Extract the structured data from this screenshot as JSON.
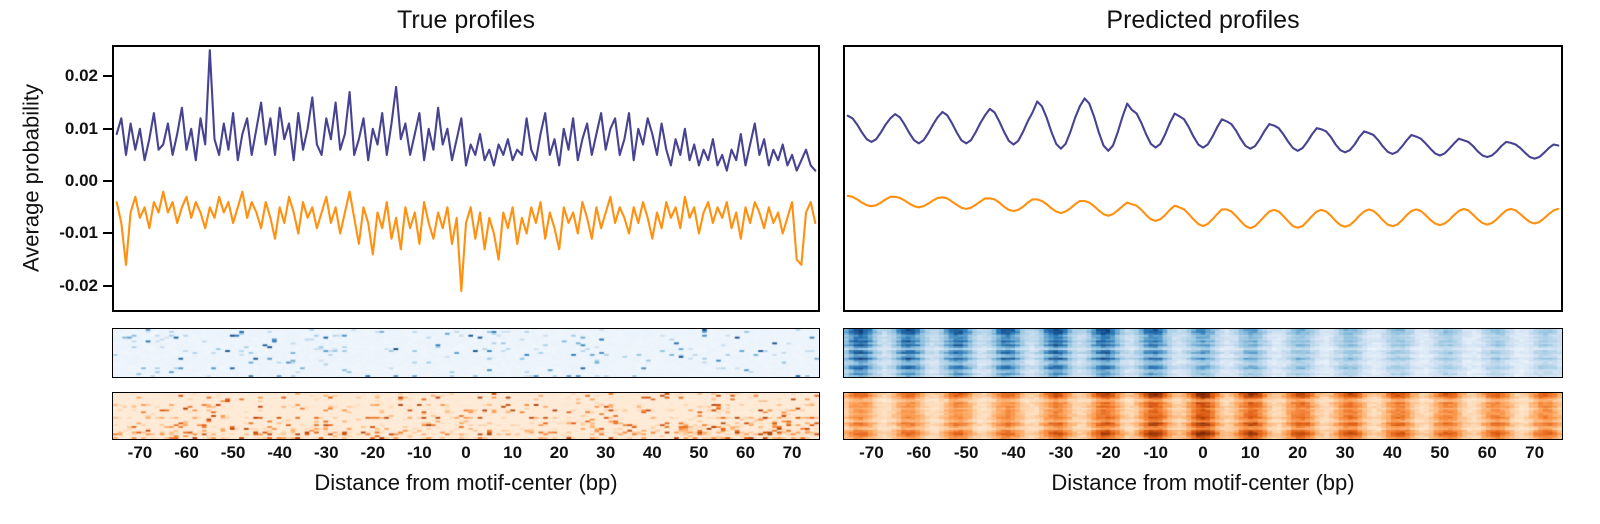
{
  "figure": {
    "background": "#ffffff",
    "axis_color": "#000000"
  },
  "colormaps": {
    "blues": [
      [
        0,
        "#f7fbff"
      ],
      [
        0.25,
        "#d0e1f2"
      ],
      [
        0.5,
        "#94c4df"
      ],
      [
        0.75,
        "#2b7bba"
      ],
      [
        1,
        "#08306b"
      ]
    ],
    "oranges": [
      [
        0,
        "#fff5eb"
      ],
      [
        0.25,
        "#fdd9b4"
      ],
      [
        0.5,
        "#fd9e53"
      ],
      [
        0.75,
        "#e05c10"
      ],
      [
        1,
        "#7f2704"
      ]
    ]
  },
  "chart_data": [
    {
      "id": "true",
      "type": "line",
      "title": "True profiles",
      "xlabel": "Distance from motif-center (bp)",
      "ylabel": "Average probability",
      "xlim": [
        -76,
        76
      ],
      "ylim": [
        -0.025,
        0.026
      ],
      "xticks": [
        -70,
        -60,
        -50,
        -40,
        -30,
        -20,
        -10,
        0,
        10,
        20,
        30,
        40,
        50,
        60,
        70
      ],
      "yticks": [
        0.02,
        0.01,
        0.0,
        -0.01,
        -0.02
      ],
      "ytick_labels": [
        "0.02",
        "0.01",
        "0.00",
        "-0.01",
        "-0.02"
      ],
      "x_range": [
        -75,
        75,
        1
      ],
      "series": [
        {
          "name": "positive-strand-profile",
          "color": "#474291",
          "y": [
            0.009,
            0.012,
            0.005,
            0.011,
            0.006,
            0.01,
            0.004,
            0.008,
            0.013,
            0.006,
            0.007,
            0.011,
            0.005,
            0.009,
            0.014,
            0.006,
            0.01,
            0.004,
            0.012,
            0.007,
            0.025,
            0.008,
            0.005,
            0.011,
            0.006,
            0.013,
            0.004,
            0.009,
            0.012,
            0.005,
            0.01,
            0.015,
            0.007,
            0.012,
            0.005,
            0.014,
            0.008,
            0.011,
            0.004,
            0.013,
            0.006,
            0.01,
            0.016,
            0.007,
            0.005,
            0.012,
            0.008,
            0.015,
            0.006,
            0.009,
            0.017,
            0.005,
            0.008,
            0.012,
            0.004,
            0.01,
            0.007,
            0.013,
            0.005,
            0.011,
            0.018,
            0.008,
            0.011,
            0.005,
            0.009,
            0.013,
            0.004,
            0.01,
            0.006,
            0.014,
            0.007,
            0.01,
            0.004,
            0.008,
            0.012,
            0.003,
            0.007,
            0.005,
            0.009,
            0.004,
            0.006,
            0.003,
            0.007,
            0.005,
            0.008,
            0.004,
            0.006,
            0.005,
            0.012,
            0.006,
            0.004,
            0.009,
            0.013,
            0.005,
            0.008,
            0.003,
            0.01,
            0.006,
            0.012,
            0.004,
            0.008,
            0.011,
            0.005,
            0.009,
            0.013,
            0.006,
            0.01,
            0.012,
            0.005,
            0.008,
            0.013,
            0.004,
            0.01,
            0.007,
            0.012,
            0.009,
            0.005,
            0.011,
            0.006,
            0.003,
            0.008,
            0.005,
            0.01,
            0.004,
            0.007,
            0.003,
            0.006,
            0.004,
            0.008,
            0.003,
            0.005,
            0.002,
            0.006,
            0.004,
            0.009,
            0.003,
            0.007,
            0.011,
            0.005,
            0.008,
            0.003,
            0.006,
            0.004,
            0.007,
            0.003,
            0.005,
            0.002,
            0.004,
            0.006,
            0.003,
            0.002
          ]
        },
        {
          "name": "negative-strand-profile",
          "color": "#ff9010",
          "y": [
            -0.004,
            -0.008,
            -0.016,
            -0.006,
            -0.003,
            -0.007,
            -0.005,
            -0.009,
            -0.004,
            -0.006,
            -0.002,
            -0.006,
            -0.004,
            -0.008,
            -0.005,
            -0.003,
            -0.007,
            -0.004,
            -0.006,
            -0.009,
            -0.005,
            -0.007,
            -0.003,
            -0.006,
            -0.004,
            -0.008,
            -0.005,
            -0.002,
            -0.007,
            -0.004,
            -0.006,
            -0.009,
            -0.004,
            -0.007,
            -0.011,
            -0.005,
            -0.008,
            -0.003,
            -0.006,
            -0.01,
            -0.004,
            -0.007,
            -0.005,
            -0.009,
            -0.006,
            -0.003,
            -0.008,
            -0.005,
            -0.01,
            -0.006,
            -0.002,
            -0.007,
            -0.012,
            -0.005,
            -0.008,
            -0.014,
            -0.006,
            -0.009,
            -0.004,
            -0.011,
            -0.007,
            -0.013,
            -0.005,
            -0.009,
            -0.006,
            -0.012,
            -0.004,
            -0.008,
            -0.011,
            -0.006,
            -0.009,
            -0.005,
            -0.012,
            -0.007,
            -0.021,
            -0.008,
            -0.005,
            -0.011,
            -0.006,
            -0.013,
            -0.007,
            -0.01,
            -0.015,
            -0.006,
            -0.009,
            -0.005,
            -0.012,
            -0.007,
            -0.01,
            -0.005,
            -0.008,
            -0.004,
            -0.011,
            -0.006,
            -0.009,
            -0.013,
            -0.005,
            -0.008,
            -0.006,
            -0.01,
            -0.004,
            -0.007,
            -0.011,
            -0.005,
            -0.009,
            -0.006,
            -0.003,
            -0.008,
            -0.005,
            -0.007,
            -0.01,
            -0.005,
            -0.008,
            -0.004,
            -0.007,
            -0.011,
            -0.006,
            -0.009,
            -0.004,
            -0.007,
            -0.005,
            -0.009,
            -0.003,
            -0.007,
            -0.005,
            -0.01,
            -0.006,
            -0.004,
            -0.008,
            -0.005,
            -0.007,
            -0.004,
            -0.009,
            -0.006,
            -0.011,
            -0.005,
            -0.008,
            -0.004,
            -0.006,
            -0.009,
            -0.005,
            -0.008,
            -0.006,
            -0.01,
            -0.007,
            -0.004,
            -0.015,
            -0.016,
            -0.006,
            -0.004,
            -0.008
          ]
        }
      ],
      "heatmaps": [
        {
          "name": "true-positive-heatmap",
          "colormap": "blues",
          "style": "sparse",
          "rows": 25,
          "seed": 11,
          "density": 0.05,
          "bg": 0.05,
          "value_lo": 0.25,
          "value_hi": 0.95
        },
        {
          "name": "true-negative-heatmap",
          "colormap": "oranges",
          "style": "sparse",
          "rows": 25,
          "seed": 29,
          "density": 0.17,
          "bg": 0.08,
          "value_lo": 0.2,
          "value_hi": 0.9,
          "right_boost": 1.8
        }
      ]
    },
    {
      "id": "predicted",
      "type": "line",
      "title": "Predicted profiles",
      "xlabel": "Distance from motif-center (bp)",
      "xlim": [
        -76,
        76
      ],
      "ylim": [
        -0.025,
        0.026
      ],
      "xticks": [
        -70,
        -60,
        -50,
        -40,
        -30,
        -20,
        -10,
        0,
        10,
        20,
        30,
        40,
        50,
        60,
        70
      ],
      "yticks": [],
      "ytick_labels": [],
      "x_range": [
        -75,
        75,
        1
      ],
      "series": [
        {
          "name": "positive-strand-profile",
          "color": "#474291",
          "y": [
            0.0125,
            0.012,
            0.0108,
            0.0093,
            0.008,
            0.0075,
            0.008,
            0.0093,
            0.0108,
            0.012,
            0.0128,
            0.0122,
            0.0108,
            0.0092,
            0.0078,
            0.0072,
            0.0078,
            0.0092,
            0.0108,
            0.0122,
            0.0132,
            0.0126,
            0.0111,
            0.0093,
            0.0078,
            0.0072,
            0.0078,
            0.0093,
            0.0111,
            0.0126,
            0.0138,
            0.0131,
            0.0114,
            0.0094,
            0.0077,
            0.007,
            0.0077,
            0.0094,
            0.0114,
            0.0131,
            0.0152,
            0.0143,
            0.0121,
            0.0094,
            0.0071,
            0.0062,
            0.0071,
            0.0094,
            0.0121,
            0.0143,
            0.0158,
            0.0148,
            0.0123,
            0.0093,
            0.0068,
            0.0058,
            0.0068,
            0.0093,
            0.0123,
            0.0148,
            0.0136,
            0.0129,
            0.0111,
            0.0089,
            0.0071,
            0.0064,
            0.0071,
            0.0089,
            0.0111,
            0.0129,
            0.0124,
            0.0118,
            0.0103,
            0.0085,
            0.007,
            0.0064,
            0.007,
            0.0085,
            0.0103,
            0.0118,
            0.0114,
            0.0109,
            0.0096,
            0.008,
            0.0067,
            0.0062,
            0.0067,
            0.008,
            0.0096,
            0.0109,
            0.0106,
            0.0101,
            0.0089,
            0.0075,
            0.0063,
            0.0058,
            0.0063,
            0.0075,
            0.0089,
            0.0101,
            0.0099,
            0.0095,
            0.0084,
            0.007,
            0.0059,
            0.0055,
            0.0059,
            0.007,
            0.0084,
            0.0095,
            0.0092,
            0.0088,
            0.0078,
            0.0066,
            0.0056,
            0.0052,
            0.0056,
            0.0066,
            0.0078,
            0.0088,
            0.0085,
            0.0081,
            0.0072,
            0.0062,
            0.0053,
            0.0049,
            0.0053,
            0.0062,
            0.0072,
            0.0081,
            0.0078,
            0.0075,
            0.0067,
            0.0057,
            0.0049,
            0.0046,
            0.0049,
            0.0057,
            0.0067,
            0.0075,
            0.0073,
            0.007,
            0.0063,
            0.0054,
            0.0046,
            0.0043,
            0.0046,
            0.0054,
            0.0063,
            0.007,
            0.0068
          ]
        },
        {
          "name": "negative-strand-profile",
          "color": "#ff9010",
          "y": [
            -0.0028,
            -0.003,
            -0.0035,
            -0.0041,
            -0.0046,
            -0.0048,
            -0.0046,
            -0.0041,
            -0.0035,
            -0.003,
            -0.003,
            -0.0032,
            -0.0037,
            -0.0043,
            -0.0048,
            -0.005,
            -0.0048,
            -0.0043,
            -0.0037,
            -0.0032,
            -0.0031,
            -0.0033,
            -0.0039,
            -0.0045,
            -0.0051,
            -0.0053,
            -0.0051,
            -0.0045,
            -0.0039,
            -0.0033,
            -0.0033,
            -0.0035,
            -0.0041,
            -0.0049,
            -0.0055,
            -0.0057,
            -0.0055,
            -0.0049,
            -0.0041,
            -0.0035,
            -0.0035,
            -0.0038,
            -0.0044,
            -0.0052,
            -0.0058,
            -0.0061,
            -0.0058,
            -0.0052,
            -0.0044,
            -0.0038,
            -0.0038,
            -0.0041,
            -0.0048,
            -0.0056,
            -0.0063,
            -0.0066,
            -0.0063,
            -0.0056,
            -0.0048,
            -0.0041,
            -0.0044,
            -0.0047,
            -0.0055,
            -0.0065,
            -0.0073,
            -0.0076,
            -0.0073,
            -0.0065,
            -0.0055,
            -0.0047,
            -0.005,
            -0.0054,
            -0.0063,
            -0.0073,
            -0.0082,
            -0.0086,
            -0.0082,
            -0.0073,
            -0.0063,
            -0.0054,
            -0.0054,
            -0.0058,
            -0.0067,
            -0.0077,
            -0.0086,
            -0.009,
            -0.0086,
            -0.0077,
            -0.0067,
            -0.0058,
            -0.0055,
            -0.0058,
            -0.0067,
            -0.0077,
            -0.0086,
            -0.0089,
            -0.0086,
            -0.0077,
            -0.0067,
            -0.0058,
            -0.0055,
            -0.0058,
            -0.0066,
            -0.0076,
            -0.0084,
            -0.0087,
            -0.0084,
            -0.0076,
            -0.0066,
            -0.0058,
            -0.0054,
            -0.0057,
            -0.0065,
            -0.0075,
            -0.0083,
            -0.0086,
            -0.0083,
            -0.0075,
            -0.0065,
            -0.0057,
            -0.0054,
            -0.0057,
            -0.0065,
            -0.0074,
            -0.0081,
            -0.0084,
            -0.0081,
            -0.0074,
            -0.0065,
            -0.0057,
            -0.0053,
            -0.0056,
            -0.0064,
            -0.0073,
            -0.008,
            -0.0083,
            -0.008,
            -0.0073,
            -0.0064,
            -0.0056,
            -0.0053,
            -0.0056,
            -0.0063,
            -0.0071,
            -0.0078,
            -0.0081,
            -0.0078,
            -0.0071,
            -0.0063,
            -0.0056,
            -0.0053
          ]
        }
      ],
      "heatmaps": [
        {
          "name": "predicted-positive-heatmap",
          "colormap": "blues",
          "style": "periodic",
          "rows": 25,
          "seed": 41,
          "period": 10.3,
          "x_profile": [
            [
              -76,
              0.8
            ],
            [
              -45,
              0.72
            ],
            [
              -25,
              0.8
            ],
            [
              -10,
              0.72
            ],
            [
              0,
              0.6
            ],
            [
              20,
              0.5
            ],
            [
              45,
              0.44
            ],
            [
              76,
              0.4
            ]
          ]
        },
        {
          "name": "predicted-negative-heatmap",
          "colormap": "oranges",
          "style": "periodic",
          "rows": 25,
          "seed": 57,
          "period": 10.3,
          "x_profile": [
            [
              -76,
              0.6
            ],
            [
              -40,
              0.62
            ],
            [
              -15,
              0.78
            ],
            [
              0,
              0.88
            ],
            [
              15,
              0.74
            ],
            [
              40,
              0.68
            ],
            [
              76,
              0.62
            ]
          ]
        }
      ]
    }
  ]
}
